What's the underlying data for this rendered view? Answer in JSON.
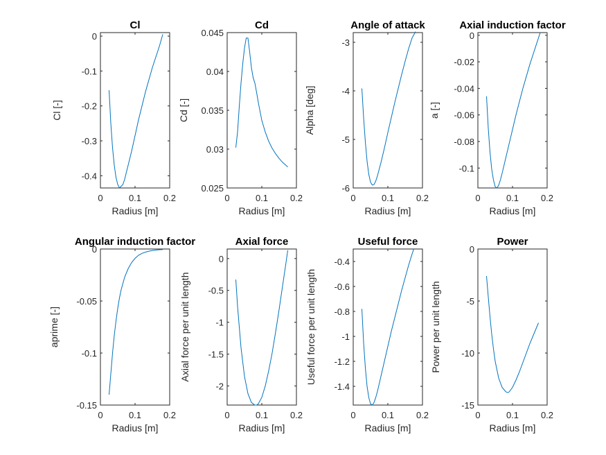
{
  "colors": {
    "line": "#0072bd",
    "axes": "#262626",
    "background": "#ffffff"
  },
  "chart_data": [
    {
      "type": "line",
      "title": "Cl",
      "xlabel": "Radius [m]",
      "ylabel": "Cl [-]",
      "xlim": [
        0,
        0.2
      ],
      "ylim": [
        -0.435,
        0.01
      ],
      "xticks": [
        0,
        0.1,
        0.2
      ],
      "xtick_labels": [
        "0",
        "0.1",
        "0.2"
      ],
      "yticks": [
        0,
        -0.1,
        -0.2,
        -0.3,
        -0.4
      ],
      "ytick_labels": [
        "0",
        "-0.1",
        "-0.2",
        "-0.3",
        "-0.4"
      ],
      "series": [
        {
          "x": [
            0.025,
            0.03,
            0.035,
            0.04,
            0.045,
            0.05,
            0.055,
            0.06,
            0.065,
            0.07,
            0.08,
            0.09,
            0.1,
            0.11,
            0.12,
            0.13,
            0.14,
            0.15,
            0.16,
            0.17,
            0.18
          ],
          "y": [
            -0.155,
            -0.25,
            -0.32,
            -0.37,
            -0.405,
            -0.425,
            -0.435,
            -0.43,
            -0.425,
            -0.41,
            -0.37,
            -0.33,
            -0.285,
            -0.24,
            -0.2,
            -0.16,
            -0.125,
            -0.09,
            -0.06,
            -0.03,
            0.005
          ]
        }
      ]
    },
    {
      "type": "line",
      "title": "Cd",
      "xlabel": "Radius [m]",
      "ylabel": "Cd [-]",
      "xlim": [
        0,
        0.2
      ],
      "ylim": [
        0.025,
        0.045
      ],
      "xticks": [
        0,
        0.1,
        0.2
      ],
      "xtick_labels": [
        "0",
        "0.1",
        "0.2"
      ],
      "yticks": [
        0.045,
        0.04,
        0.035,
        0.03,
        0.025
      ],
      "ytick_labels": [
        "0.045",
        "0.04",
        "0.035",
        "0.03",
        "0.025"
      ],
      "series": [
        {
          "x": [
            0.025,
            0.03,
            0.035,
            0.04,
            0.045,
            0.05,
            0.055,
            0.06,
            0.065,
            0.07,
            0.075,
            0.08,
            0.085,
            0.09,
            0.1,
            0.11,
            0.12,
            0.13,
            0.14,
            0.15,
            0.16,
            0.17,
            0.175
          ],
          "y": [
            0.0302,
            0.0322,
            0.0355,
            0.0385,
            0.041,
            0.043,
            0.0443,
            0.0443,
            0.0425,
            0.0405,
            0.0392,
            0.0385,
            0.0373,
            0.036,
            0.0337,
            0.0322,
            0.031,
            0.0301,
            0.0294,
            0.0288,
            0.0283,
            0.0279,
            0.0277
          ]
        }
      ]
    },
    {
      "type": "line",
      "title": "Angle of attack",
      "xlabel": "Radius [m]",
      "ylabel": "Alpha [deg]",
      "xlim": [
        0,
        0.2
      ],
      "ylim": [
        -6,
        -2.8
      ],
      "xticks": [
        0,
        0.1,
        0.2
      ],
      "xtick_labels": [
        "0",
        "0.1",
        "0.2"
      ],
      "yticks": [
        -3,
        -4,
        -5,
        -6
      ],
      "ytick_labels": [
        "-3",
        "-4",
        "-5",
        "-6"
      ],
      "series": [
        {
          "x": [
            0.025,
            0.03,
            0.035,
            0.04,
            0.045,
            0.05,
            0.055,
            0.06,
            0.065,
            0.07,
            0.08,
            0.09,
            0.1,
            0.11,
            0.12,
            0.13,
            0.14,
            0.15,
            0.16,
            0.17,
            0.18
          ],
          "y": [
            -3.95,
            -4.55,
            -5.05,
            -5.45,
            -5.72,
            -5.88,
            -5.94,
            -5.93,
            -5.86,
            -5.75,
            -5.48,
            -5.18,
            -4.86,
            -4.55,
            -4.24,
            -3.95,
            -3.66,
            -3.39,
            -3.13,
            -2.91,
            -2.78
          ]
        }
      ]
    },
    {
      "type": "line",
      "title": "Axial induction factor",
      "xlabel": "Radius [m]",
      "ylabel": "a [-]",
      "xlim": [
        0,
        0.2
      ],
      "ylim": [
        -0.115,
        0.002
      ],
      "xticks": [
        0,
        0.1,
        0.2
      ],
      "xtick_labels": [
        "0",
        "0.1",
        "0.2"
      ],
      "yticks": [
        0,
        -0.02,
        -0.04,
        -0.06,
        -0.08,
        -0.1
      ],
      "ytick_labels": [
        "0",
        "-0.02",
        "-0.04",
        "-0.06",
        "-0.08",
        "-0.1"
      ],
      "series": [
        {
          "x": [
            0.025,
            0.03,
            0.035,
            0.04,
            0.045,
            0.05,
            0.055,
            0.06,
            0.065,
            0.07,
            0.08,
            0.09,
            0.1,
            0.11,
            0.12,
            0.13,
            0.14,
            0.15,
            0.16,
            0.17,
            0.18
          ],
          "y": [
            -0.046,
            -0.07,
            -0.088,
            -0.101,
            -0.109,
            -0.114,
            -0.115,
            -0.113,
            -0.109,
            -0.104,
            -0.093,
            -0.082,
            -0.071,
            -0.06,
            -0.05,
            -0.04,
            -0.031,
            -0.022,
            -0.014,
            -0.006,
            0.002
          ]
        }
      ]
    },
    {
      "type": "line",
      "title": "Angular induction factor",
      "xlabel": "Radius [m]",
      "ylabel": "aprime [-]",
      "xlim": [
        0,
        0.2
      ],
      "ylim": [
        -0.15,
        0
      ],
      "xticks": [
        0,
        0.1,
        0.2
      ],
      "xtick_labels": [
        "0",
        "0.1",
        "0.2"
      ],
      "yticks": [
        0,
        -0.05,
        -0.1,
        -0.15
      ],
      "ytick_labels": [
        "0",
        "-0.05",
        "-0.1",
        "-0.15"
      ],
      "series": [
        {
          "x": [
            0.025,
            0.03,
            0.035,
            0.04,
            0.045,
            0.05,
            0.055,
            0.06,
            0.07,
            0.08,
            0.09,
            0.1,
            0.11,
            0.12,
            0.13,
            0.14,
            0.15,
            0.16,
            0.17,
            0.18
          ],
          "y": [
            -0.14,
            -0.12,
            -0.1,
            -0.083,
            -0.069,
            -0.057,
            -0.047,
            -0.039,
            -0.027,
            -0.019,
            -0.013,
            -0.009,
            -0.006,
            -0.0042,
            -0.003,
            -0.0021,
            -0.0015,
            -0.001,
            -0.0007,
            -0.0005
          ]
        }
      ]
    },
    {
      "type": "line",
      "title": "Axial force",
      "xlabel": "Radius [m]",
      "ylabel": "Axial force per unit length",
      "xlim": [
        0,
        0.2
      ],
      "ylim": [
        -2.3,
        0.15
      ],
      "xticks": [
        0,
        0.1,
        0.2
      ],
      "xtick_labels": [
        "0",
        "0.1",
        "0.2"
      ],
      "yticks": [
        0,
        -0.5,
        -1,
        -1.5,
        -2
      ],
      "ytick_labels": [
        "0",
        "-0.5",
        "-1",
        "-1.5",
        "-2"
      ],
      "series": [
        {
          "x": [
            0.025,
            0.03,
            0.04,
            0.05,
            0.06,
            0.07,
            0.08,
            0.085,
            0.09,
            0.1,
            0.11,
            0.12,
            0.13,
            0.14,
            0.15,
            0.16,
            0.17,
            0.175
          ],
          "y": [
            -0.33,
            -0.75,
            -1.4,
            -1.85,
            -2.12,
            -2.26,
            -2.3,
            -2.3,
            -2.28,
            -2.18,
            -2.0,
            -1.76,
            -1.48,
            -1.15,
            -0.8,
            -0.43,
            -0.06,
            0.13
          ]
        }
      ]
    },
    {
      "type": "line",
      "title": "Useful force",
      "xlabel": "Radius [m]",
      "ylabel": "Useful force per unit length",
      "xlim": [
        0,
        0.2
      ],
      "ylim": [
        -1.55,
        -0.3
      ],
      "xticks": [
        0,
        0.1,
        0.2
      ],
      "xtick_labels": [
        "0",
        "0.1",
        "0.2"
      ],
      "yticks": [
        -0.4,
        -0.6,
        -0.8,
        -1,
        -1.2,
        -1.4
      ],
      "ytick_labels": [
        "-0.4",
        "-0.6",
        "-0.8",
        "-1",
        "-1.2",
        "-1.4"
      ],
      "series": [
        {
          "x": [
            0.025,
            0.03,
            0.035,
            0.04,
            0.045,
            0.05,
            0.055,
            0.06,
            0.065,
            0.07,
            0.08,
            0.09,
            0.1,
            0.11,
            0.12,
            0.13,
            0.14,
            0.15,
            0.16,
            0.17,
            0.175
          ],
          "y": [
            -0.78,
            -1.05,
            -1.25,
            -1.4,
            -1.49,
            -1.54,
            -1.55,
            -1.53,
            -1.49,
            -1.44,
            -1.32,
            -1.2,
            -1.08,
            -0.96,
            -0.85,
            -0.74,
            -0.63,
            -0.53,
            -0.43,
            -0.34,
            -0.3
          ]
        }
      ]
    },
    {
      "type": "line",
      "title": "Power",
      "xlabel": "Radius [m]",
      "ylabel": "Power per unit length",
      "xlim": [
        0,
        0.2
      ],
      "ylim": [
        -15,
        0
      ],
      "xticks": [
        0,
        0.1,
        0.2
      ],
      "xtick_labels": [
        "0",
        "0.1",
        "0.2"
      ],
      "yticks": [
        0,
        -5,
        -10,
        -15
      ],
      "ytick_labels": [
        "0",
        "-5",
        "-10",
        "-15"
      ],
      "series": [
        {
          "x": [
            0.025,
            0.03,
            0.035,
            0.04,
            0.045,
            0.05,
            0.06,
            0.07,
            0.08,
            0.085,
            0.09,
            0.1,
            0.11,
            0.12,
            0.13,
            0.14,
            0.15,
            0.16,
            0.17,
            0.175
          ],
          "y": [
            -2.6,
            -4.6,
            -6.5,
            -8.2,
            -9.6,
            -10.8,
            -12.4,
            -13.3,
            -13.7,
            -13.8,
            -13.75,
            -13.3,
            -12.6,
            -11.8,
            -10.9,
            -10.0,
            -9.1,
            -8.3,
            -7.5,
            -7.1
          ]
        }
      ]
    }
  ]
}
